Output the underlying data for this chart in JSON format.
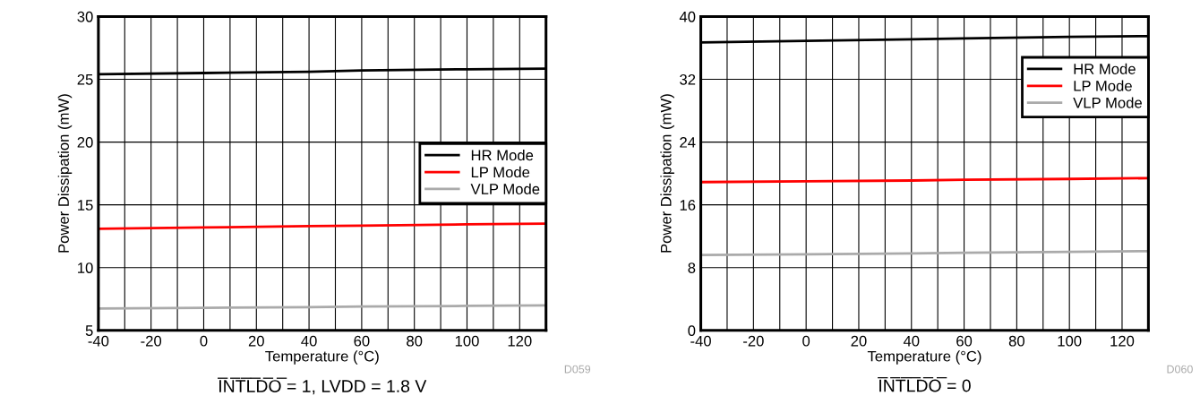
{
  "chart_data": [
    {
      "type": "line",
      "xlabel": "Temperature (°C)",
      "ylabel": "Power Dissipation (mW)",
      "x": [
        -40,
        0,
        40,
        60,
        100,
        130
      ],
      "xlim": [
        -40,
        130
      ],
      "ylim": [
        5,
        30
      ],
      "xticks": [
        -40,
        {
          "value": -30,
          "label": null
        },
        -20,
        {
          "value": -10,
          "label": null
        },
        0,
        {
          "value": 10,
          "label": null
        },
        20,
        {
          "value": 30,
          "label": null
        },
        40,
        {
          "value": 50,
          "label": null
        },
        60,
        {
          "value": 70,
          "label": null
        },
        80,
        {
          "value": 90,
          "label": null
        },
        100,
        {
          "value": 110,
          "label": null
        },
        120,
        {
          "value": 130,
          "label": null
        }
      ],
      "yticks": [
        5,
        10,
        15,
        20,
        25,
        30
      ],
      "grid": true,
      "legend": "center right",
      "marker": "none",
      "line_style": "solid",
      "series": [
        {
          "name": "HR Mode",
          "color": "#000000",
          "values": [
            25.4,
            25.5,
            25.6,
            25.7,
            25.8,
            25.85
          ]
        },
        {
          "name": "LP Mode",
          "color": "#ff0000",
          "values": [
            13.1,
            13.2,
            13.3,
            13.35,
            13.45,
            13.5
          ]
        },
        {
          "name": "VLP Mode",
          "color": "#aaaaaa",
          "values": [
            6.75,
            6.8,
            6.85,
            6.9,
            6.95,
            7.0
          ]
        }
      ],
      "annotations": [
        "I̅N̅T̅L̅D̅O̅ = 1, LVDD = 1.8 V",
        "D059"
      ]
    },
    {
      "type": "line",
      "xlabel": "Temperature (°C)",
      "ylabel": "Power Dissipation (mW)",
      "x": [
        -40,
        0,
        40,
        60,
        100,
        130
      ],
      "xlim": [
        -40,
        130
      ],
      "ylim": [
        0,
        40
      ],
      "xticks": [
        -40,
        {
          "value": -30,
          "label": null
        },
        -20,
        {
          "value": -10,
          "label": null
        },
        0,
        {
          "value": 10,
          "label": null
        },
        20,
        {
          "value": 30,
          "label": null
        },
        40,
        {
          "value": 50,
          "label": null
        },
        60,
        {
          "value": 70,
          "label": null
        },
        80,
        {
          "value": 90,
          "label": null
        },
        100,
        {
          "value": 110,
          "label": null
        },
        120,
        {
          "value": 130,
          "label": null
        }
      ],
      "yticks": [
        0,
        8,
        16,
        24,
        32,
        40
      ],
      "grid": true,
      "legend": "upper right",
      "marker": "none",
      "line_style": "solid",
      "series": [
        {
          "name": "HR Mode",
          "color": "#000000",
          "values": [
            36.7,
            36.9,
            37.1,
            37.2,
            37.4,
            37.5
          ]
        },
        {
          "name": "LP Mode",
          "color": "#ff0000",
          "values": [
            18.9,
            19.0,
            19.1,
            19.2,
            19.3,
            19.4
          ]
        },
        {
          "name": "VLP Mode",
          "color": "#aaaaaa",
          "values": [
            9.6,
            9.7,
            9.8,
            9.9,
            10.0,
            10.1
          ]
        }
      ],
      "annotations": [
        "I̅N̅T̅L̅D̅O̅ = 0",
        "D060"
      ]
    }
  ]
}
